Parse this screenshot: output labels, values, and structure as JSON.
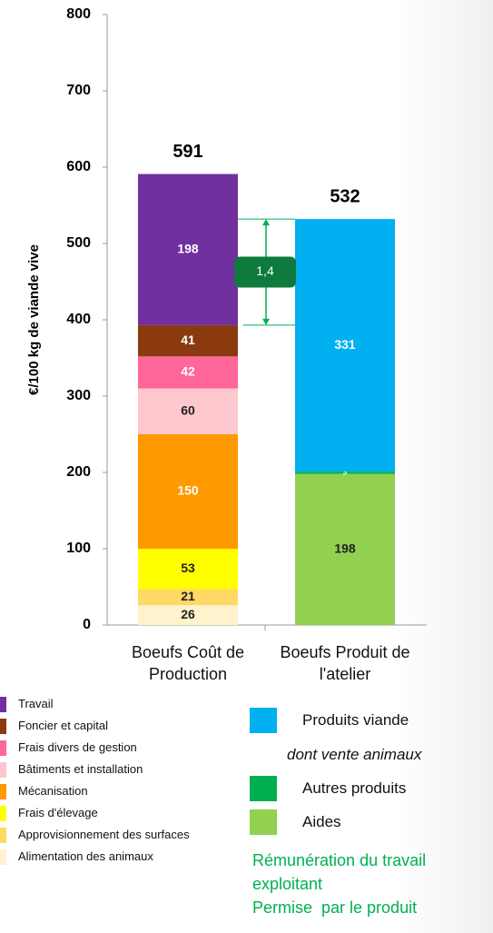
{
  "chart_data": {
    "type": "stacked_bar",
    "y_label": "€/100 kg de viande vive",
    "categories": [
      "Boeufs Coût de Production",
      "Boeufs Produit de l'atelier"
    ],
    "totals": [
      591,
      532
    ],
    "series": [
      {
        "name": "Alimentation des animaux",
        "color": "#fff2cc",
        "values": [
          26,
          null
        ]
      },
      {
        "name": "Approvisionnement des surfaces",
        "color": "#ffd966",
        "values": [
          21,
          null
        ]
      },
      {
        "name": "Frais d'élevage",
        "color": "#ffff00",
        "values": [
          53,
          null
        ]
      },
      {
        "name": "Mécanisation",
        "color": "#ff9900",
        "values": [
          150,
          null
        ]
      },
      {
        "name": "Bâtiments et installation",
        "color": "#ffc7ce",
        "values": [
          60,
          null
        ]
      },
      {
        "name": "Frais divers de gestion",
        "color": "#ff6699",
        "values": [
          42,
          null
        ]
      },
      {
        "name": "Foncier et capital",
        "color": "#8b3a0f",
        "values": [
          41,
          null
        ]
      },
      {
        "name": "Travail",
        "color": "#7030a0",
        "values": [
          198,
          null
        ]
      },
      {
        "name": "Aides",
        "color": "#92d050",
        "values": [
          null,
          198
        ]
      },
      {
        "name": "Autres produits",
        "color": "#00b050",
        "values": [
          null,
          3
        ]
      },
      {
        "name": "Produits viande",
        "color": "#00b0f0",
        "values": [
          null,
          331
        ]
      }
    ],
    "legend_note": "dont vente animaux",
    "annotation": "1,4",
    "note_lines": [
      "Rémunération du travail",
      "exploitant",
      "Permise  par le produit"
    ],
    "ylim": [
      0,
      800
    ],
    "yticks": [
      0,
      100,
      200,
      300,
      400,
      500,
      600,
      700,
      800
    ],
    "grid": false
  }
}
